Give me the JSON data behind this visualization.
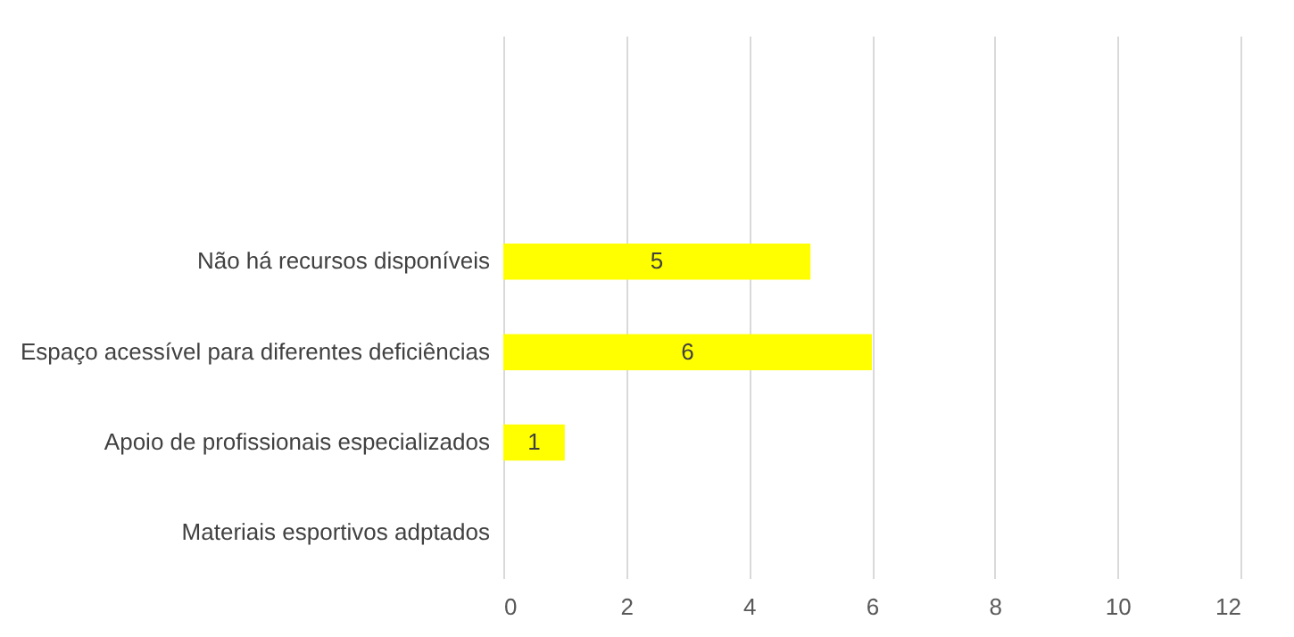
{
  "chart_data": {
    "type": "bar",
    "orientation": "horizontal",
    "categories": [
      null,
      null,
      "Não há recursos disponíveis",
      "Espaço acessível para diferentes deficiências",
      "Apoio de profissionais especializados",
      "Materiais esportivos adptados"
    ],
    "values": [
      null,
      null,
      5,
      6,
      1,
      0
    ],
    "value_labels": [
      null,
      null,
      "5",
      "6",
      "1",
      null
    ],
    "color": "#ffff00",
    "xlim": [
      0,
      12
    ],
    "xticks": [
      0,
      2,
      4,
      6,
      8,
      10,
      12
    ],
    "grid": "x"
  }
}
